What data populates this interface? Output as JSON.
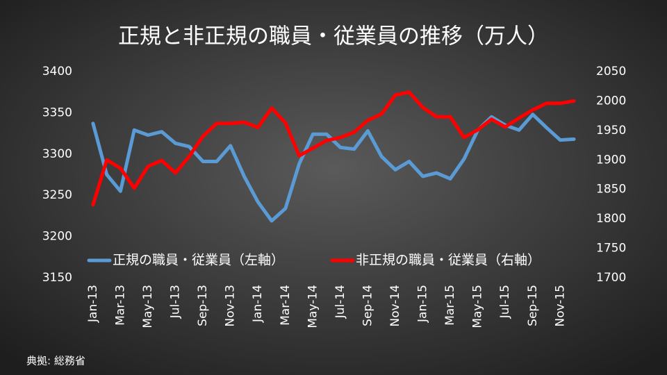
{
  "chart_data": {
    "type": "line",
    "title": "正規と非正規の職員・従業員の推移（万人）",
    "source": "典拠: 総務省",
    "categories": [
      "Jan-13",
      null,
      "Mar-13",
      null,
      "May-13",
      null,
      "Jul-13",
      null,
      "Sep-13",
      null,
      "Nov-13",
      null,
      "Jan-14",
      null,
      "Mar-14",
      null,
      "May-14",
      null,
      "Jul-14",
      null,
      "Sep-14",
      null,
      "Nov-14",
      null,
      "Jan-15",
      null,
      "Mar-15",
      null,
      "May-15",
      null,
      "Jul-15",
      null,
      "Sep-15",
      null,
      "Nov-15",
      null
    ],
    "series": [
      {
        "name": "正規の職員・従業員（左軸）",
        "color": "#5b9bd5",
        "axis": "y",
        "values": [
          3337,
          3275,
          3255,
          3329,
          3323,
          3327,
          3313,
          3309,
          3291,
          3291,
          3310,
          3273,
          3242,
          3219,
          3234,
          3288,
          3324,
          3324,
          3308,
          3306,
          3328,
          3297,
          3281,
          3291,
          3273,
          3277,
          3270,
          3294,
          3329,
          3345,
          3335,
          3329,
          3348,
          3332,
          3317,
          3318
        ]
      },
      {
        "name": "非正規の職員・従業員（右軸）",
        "color": "#ff0000",
        "axis": "y2",
        "values": [
          1824,
          1900,
          1886,
          1852,
          1889,
          1899,
          1878,
          1906,
          1940,
          1962,
          1962,
          1964,
          1955,
          1988,
          1963,
          1907,
          1920,
          1933,
          1938,
          1947,
          1967,
          1978,
          2010,
          2015,
          1989,
          1973,
          1973,
          1938,
          1951,
          1969,
          1956,
          1971,
          1985,
          1996,
          1996,
          2000
        ]
      }
    ],
    "ylim": [
      3150,
      3400
    ],
    "yticks": [
      3150,
      3200,
      3250,
      3300,
      3350,
      3400
    ],
    "y2lim": [
      1700,
      2050
    ],
    "y2ticks": [
      1700,
      1750,
      1800,
      1850,
      1900,
      1950,
      2000,
      2050
    ],
    "grid": false,
    "legend": "bottom"
  }
}
